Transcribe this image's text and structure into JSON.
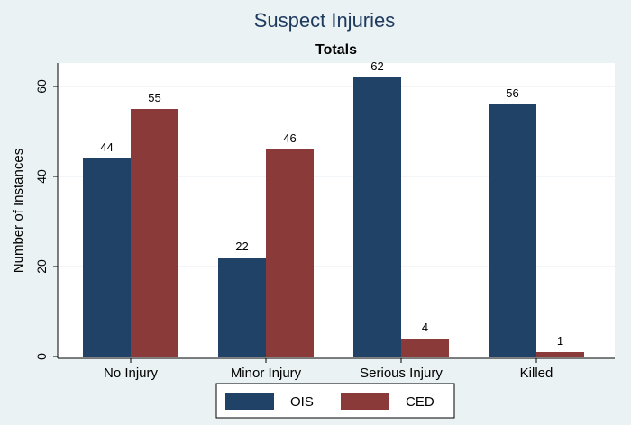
{
  "chart_data": {
    "type": "bar",
    "title": "Suspect Injuries",
    "subtitle": "Totals",
    "ylabel": "Number of Instances",
    "xlabel": "",
    "categories": [
      "No Injury",
      "Minor Injury",
      "Serious Injury",
      "Killed"
    ],
    "series": [
      {
        "name": "OIS",
        "values": [
          44,
          22,
          62,
          56
        ],
        "color": "#1f4266"
      },
      {
        "name": "CED",
        "values": [
          55,
          46,
          4,
          1
        ],
        "color": "#8b3a3a"
      }
    ],
    "ylim": [
      0,
      65
    ],
    "yticks": [
      0,
      20,
      40,
      60
    ],
    "grid": true,
    "legend_position": "bottom"
  }
}
